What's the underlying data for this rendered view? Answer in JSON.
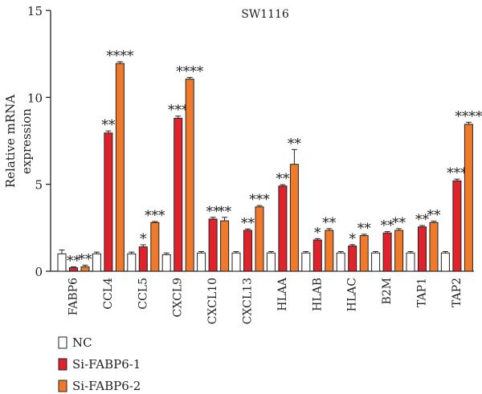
{
  "chart_data": {
    "type": "bar",
    "title": "SW1116",
    "ylabel": "Relative mRNA\nexpression",
    "xlabel": "",
    "ylim": [
      0,
      15
    ],
    "yticks": [
      0,
      5,
      10,
      15
    ],
    "grid": false,
    "legend_position": "bottom-left",
    "categories": [
      "FABP6",
      "CCL4",
      "CCL5",
      "CXCL9",
      "CXCL10",
      "CXCL13",
      "HLAA",
      "HLAB",
      "HLAC",
      "B2M",
      "TAP1",
      "TAP2"
    ],
    "series": [
      {
        "name": "NC",
        "color": "#ffffff",
        "values": [
          1.0,
          1.0,
          1.0,
          0.95,
          1.05,
          1.05,
          1.05,
          1.05,
          1.05,
          1.05,
          1.05,
          1.05
        ],
        "errors": [
          0.22,
          0.1,
          0.1,
          0.1,
          0.08,
          0.08,
          0.08,
          0.08,
          0.08,
          0.08,
          0.08,
          0.08
        ],
        "annotations": [
          "",
          "",
          "",
          "",
          "",
          "",
          "",
          "",
          "",
          "",
          "",
          ""
        ]
      },
      {
        "name": "Si-FABP6-1",
        "color": "#e0232b",
        "values": [
          0.2,
          7.95,
          1.4,
          8.8,
          3.0,
          2.35,
          4.9,
          1.8,
          1.45,
          2.2,
          2.55,
          5.2
        ],
        "errors": [
          0.05,
          0.12,
          0.12,
          0.12,
          0.1,
          0.08,
          0.08,
          0.08,
          0.08,
          0.08,
          0.08,
          0.1
        ],
        "annotations": [
          "**",
          "**",
          "*",
          "***",
          "**",
          "**",
          "**",
          "*",
          "*",
          "**",
          "**",
          "***"
        ]
      },
      {
        "name": "Si-FABP6-2",
        "color": "#f07a2b",
        "values": [
          0.25,
          11.95,
          2.8,
          11.05,
          2.9,
          3.7,
          6.15,
          2.35,
          2.05,
          2.35,
          2.8,
          8.45
        ],
        "errors": [
          0.1,
          0.1,
          0.06,
          0.1,
          0.2,
          0.08,
          0.85,
          0.1,
          0.08,
          0.1,
          0.08,
          0.12
        ],
        "annotations": [
          "**",
          "****",
          "***",
          "****",
          "**",
          "***",
          "**",
          "**",
          "**",
          "**",
          "**",
          "****"
        ]
      }
    ]
  }
}
